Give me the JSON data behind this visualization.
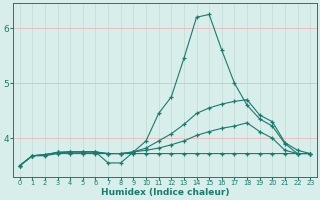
{
  "xlabel": "Humidex (Indice chaleur)",
  "xlim": [
    -0.5,
    23.5
  ],
  "ylim": [
    3.3,
    6.45
  ],
  "yticks": [
    4,
    5,
    6
  ],
  "xticks": [
    0,
    1,
    2,
    3,
    4,
    5,
    6,
    7,
    8,
    9,
    10,
    11,
    12,
    13,
    14,
    15,
    16,
    17,
    18,
    19,
    20,
    21,
    22,
    23
  ],
  "bg_color": "#d8eeea",
  "grid_color": "#c8dcd8",
  "grid_color_major": "#f0b8b8",
  "line_color": "#1a7a6e",
  "series": {
    "line1_x": [
      0,
      1,
      2,
      3,
      4,
      5,
      6,
      7,
      8,
      9,
      10,
      11,
      12,
      13,
      14,
      15,
      16,
      17,
      18,
      19,
      20,
      21,
      22,
      23
    ],
    "line1_y": [
      3.5,
      3.68,
      3.68,
      3.72,
      3.72,
      3.72,
      3.72,
      3.72,
      3.72,
      3.72,
      3.72,
      3.72,
      3.72,
      3.72,
      3.72,
      3.72,
      3.72,
      3.72,
      3.72,
      3.72,
      3.72,
      3.72,
      3.72,
      3.72
    ],
    "line2_x": [
      0,
      1,
      2,
      3,
      4,
      5,
      6,
      7,
      8,
      9,
      10,
      11,
      12,
      13,
      14,
      15,
      16,
      17,
      18,
      19,
      20,
      21,
      22,
      23
    ],
    "line2_y": [
      3.5,
      3.68,
      3.7,
      3.74,
      3.75,
      3.75,
      3.75,
      3.72,
      3.72,
      3.75,
      3.78,
      3.82,
      3.88,
      3.95,
      4.05,
      4.12,
      4.18,
      4.22,
      4.28,
      4.12,
      4.0,
      3.78,
      3.72,
      3.72
    ],
    "line3_x": [
      0,
      1,
      2,
      3,
      4,
      5,
      6,
      7,
      8,
      9,
      10,
      11,
      12,
      13,
      14,
      15,
      16,
      17,
      18,
      19,
      20,
      21,
      22,
      23
    ],
    "line3_y": [
      3.5,
      3.68,
      3.7,
      3.74,
      3.75,
      3.75,
      3.75,
      3.72,
      3.72,
      3.75,
      3.82,
      3.95,
      4.08,
      4.25,
      4.45,
      4.55,
      4.62,
      4.67,
      4.7,
      4.42,
      4.3,
      3.92,
      3.78,
      3.72
    ],
    "line4_x": [
      0,
      1,
      2,
      3,
      4,
      5,
      6,
      7,
      8,
      9,
      10,
      11,
      12,
      13,
      14,
      15,
      16,
      17,
      18,
      19,
      20,
      21,
      22,
      23
    ],
    "line4_y": [
      3.5,
      3.68,
      3.7,
      3.74,
      3.75,
      3.75,
      3.75,
      3.55,
      3.55,
      3.75,
      3.95,
      4.45,
      4.75,
      5.45,
      6.2,
      6.25,
      5.6,
      5.0,
      4.6,
      4.35,
      4.22,
      3.9,
      3.72,
      3.72
    ]
  }
}
